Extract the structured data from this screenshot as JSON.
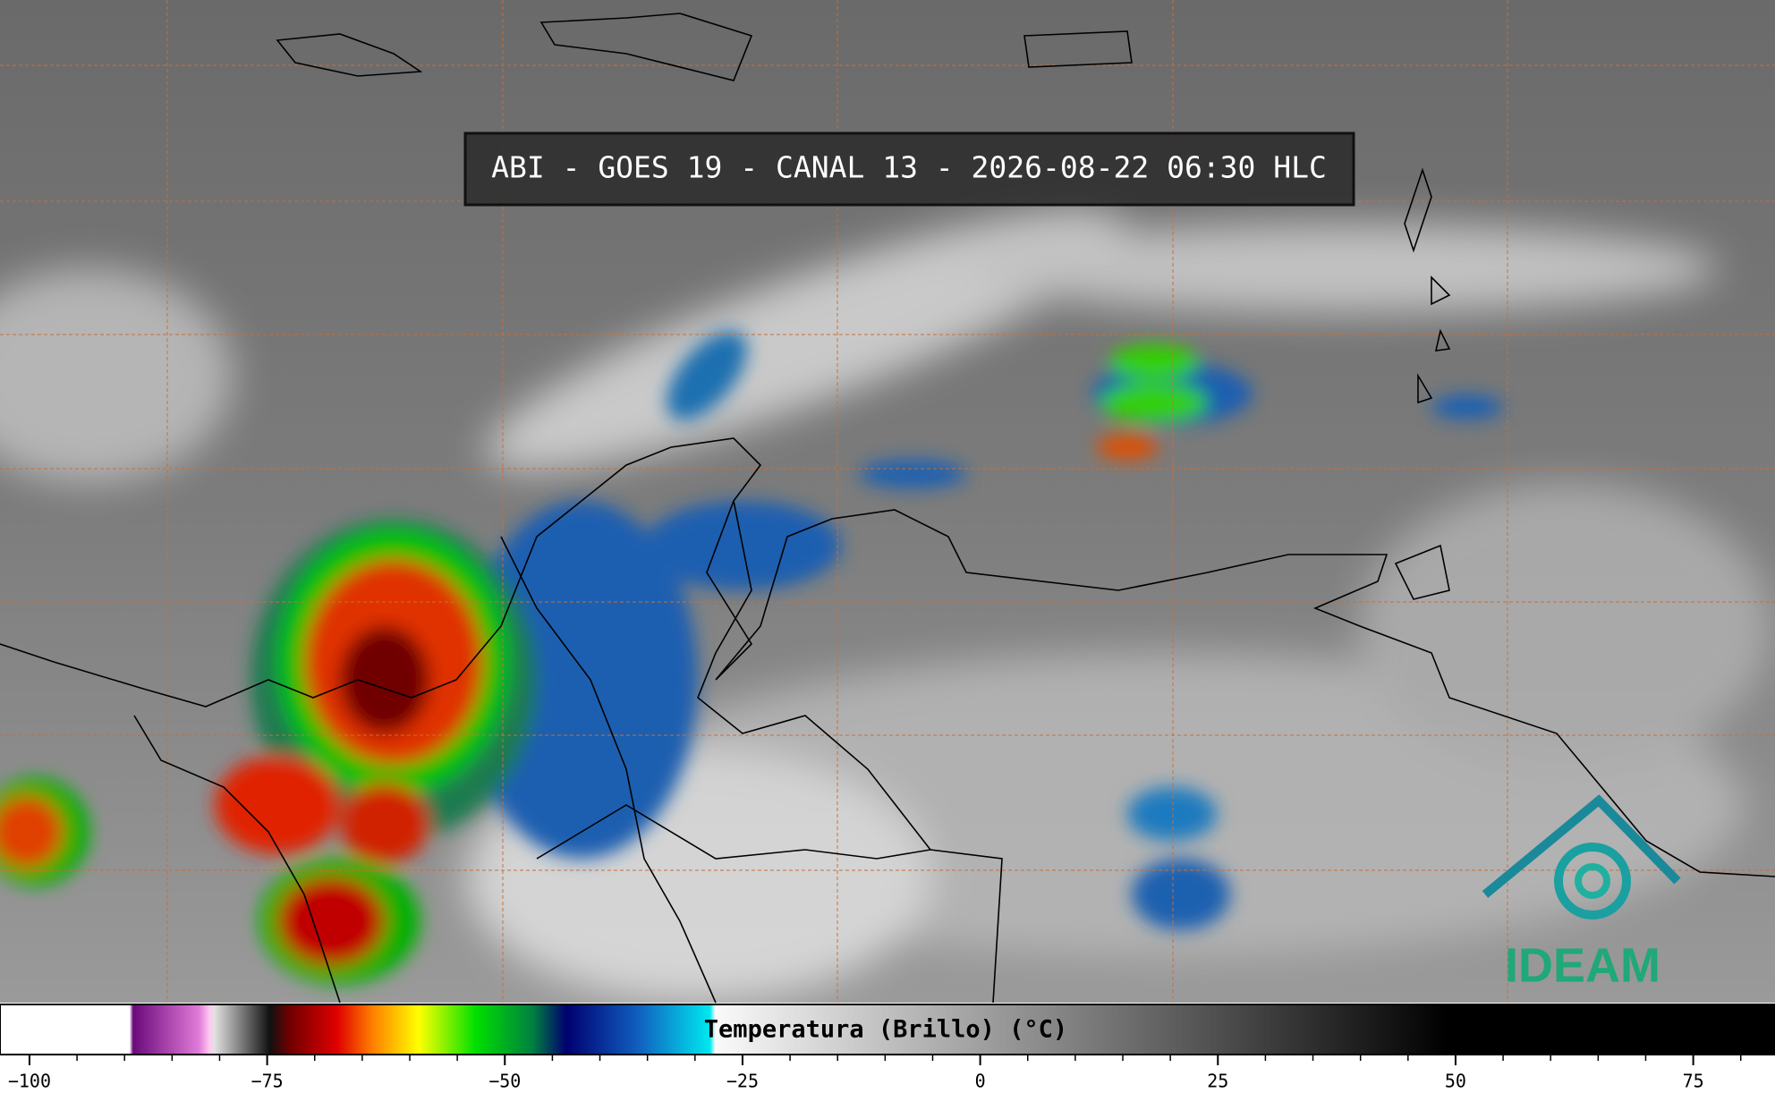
{
  "title": "ABI - GOES 19 - CANAL 13 - 2026-08-22 06:30 HLC",
  "logo": "IDEAM",
  "colorbar": {
    "label": "Temperatura (Brillo) (°C)",
    "lim": [
      -103.1,
      83.6
    ],
    "ticks": [
      {
        "value": -100,
        "label": "−100"
      },
      {
        "value": -75,
        "label": "−75"
      },
      {
        "value": -50,
        "label": "−50"
      },
      {
        "value": -25,
        "label": "−25"
      },
      0,
      25,
      50,
      75
    ],
    "minor_ticks": [
      -95,
      -90,
      -85,
      -80,
      -70,
      -65,
      -60,
      -55,
      -45,
      -40,
      -35,
      -30,
      -20,
      -15,
      -10,
      -5,
      5,
      10,
      15,
      20,
      30,
      35,
      40,
      45,
      55,
      60,
      65,
      70,
      80
    ]
  }
}
